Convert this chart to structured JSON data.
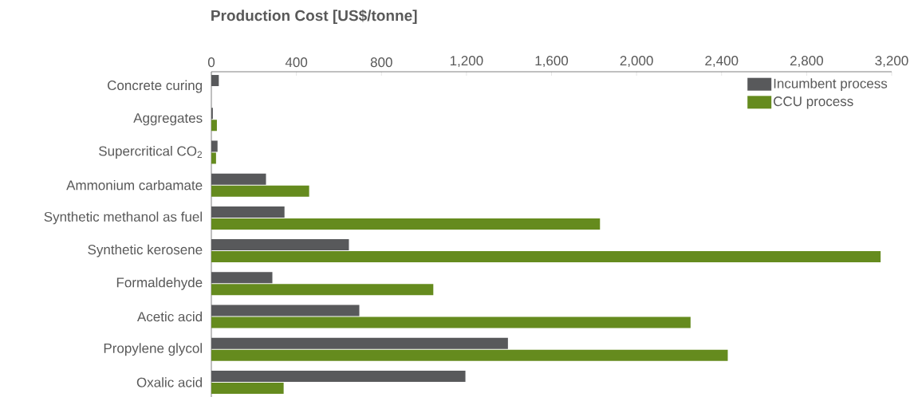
{
  "chart_data": {
    "type": "bar",
    "orientation": "horizontal",
    "xlabel": "Production Cost [US$/tonne]",
    "categories": [
      "Concrete curing",
      "Aggregates",
      "Supercritical CO$_{2}$",
      "Ammonium carbamate",
      "Synthetic methanol as fuel",
      "Synthetic kerosene",
      "Formaldehyde",
      "Acetic acid",
      "Propylene glycol",
      "Oxalic acid"
    ],
    "series": [
      {
        "name": "Incumbent process",
        "color": "#58595b",
        "values": [
          35,
          7,
          29,
          257,
          344,
          647,
          287,
          696,
          1395,
          1195
        ]
      },
      {
        "name": "CCU process",
        "color": "#658b1e",
        "values": [
          null,
          26,
          22,
          460,
          1828,
          3148,
          1044,
          2254,
          2429,
          340
        ]
      }
    ],
    "xlim": [
      0,
      3200
    ],
    "xticks": [
      0,
      {
        "value": 400,
        "label": "400"
      },
      {
        "value": 800,
        "label": "800"
      },
      {
        "value": 1200,
        "label": "1,200"
      },
      {
        "value": 1600,
        "label": "1,600"
      },
      {
        "value": 2000,
        "label": "2,000"
      },
      {
        "value": 2400,
        "label": "2,400"
      },
      {
        "value": 2800,
        "label": "2,800"
      },
      {
        "value": 3200,
        "label": "3,200"
      }
    ],
    "legend": "top right",
    "grid": false
  }
}
